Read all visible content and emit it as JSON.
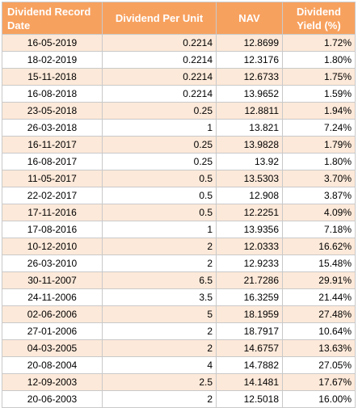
{
  "table": {
    "headers": {
      "date": "Dividend Record Date",
      "unit": "Dividend Per Unit",
      "nav": "NAV",
      "yield": "Dividend Yield (%)"
    },
    "rows": [
      {
        "date": "16-05-2019",
        "unit": "0.2214",
        "nav": "12.8699",
        "yield": "1.72%"
      },
      {
        "date": "18-02-2019",
        "unit": "0.2214",
        "nav": "12.3176",
        "yield": "1.80%"
      },
      {
        "date": "15-11-2018",
        "unit": "0.2214",
        "nav": "12.6733",
        "yield": "1.75%"
      },
      {
        "date": "16-08-2018",
        "unit": "0.2214",
        "nav": "13.9652",
        "yield": "1.59%"
      },
      {
        "date": "23-05-2018",
        "unit": "0.25",
        "nav": "12.8811",
        "yield": "1.94%"
      },
      {
        "date": "26-03-2018",
        "unit": "1",
        "nav": "13.821",
        "yield": "7.24%"
      },
      {
        "date": "16-11-2017",
        "unit": "0.25",
        "nav": "13.9828",
        "yield": "1.79%"
      },
      {
        "date": "16-08-2017",
        "unit": "0.25",
        "nav": "13.92",
        "yield": "1.80%"
      },
      {
        "date": "11-05-2017",
        "unit": "0.5",
        "nav": "13.5303",
        "yield": "3.70%"
      },
      {
        "date": "22-02-2017",
        "unit": "0.5",
        "nav": "12.908",
        "yield": "3.87%"
      },
      {
        "date": "17-11-2016",
        "unit": "0.5",
        "nav": "12.2251",
        "yield": "4.09%"
      },
      {
        "date": "17-08-2016",
        "unit": "1",
        "nav": "13.9356",
        "yield": "7.18%"
      },
      {
        "date": "10-12-2010",
        "unit": "2",
        "nav": "12.0333",
        "yield": "16.62%"
      },
      {
        "date": "26-03-2010",
        "unit": "2",
        "nav": "12.9233",
        "yield": "15.48%"
      },
      {
        "date": "30-11-2007",
        "unit": "6.5",
        "nav": "21.7286",
        "yield": "29.91%"
      },
      {
        "date": "24-11-2006",
        "unit": "3.5",
        "nav": "16.3259",
        "yield": "21.44%"
      },
      {
        "date": "02-06-2006",
        "unit": "5",
        "nav": "18.1959",
        "yield": "27.48%"
      },
      {
        "date": "27-01-2006",
        "unit": "2",
        "nav": "18.7917",
        "yield": "10.64%"
      },
      {
        "date": "04-03-2005",
        "unit": "2",
        "nav": "14.6757",
        "yield": "13.63%"
      },
      {
        "date": "20-08-2004",
        "unit": "4",
        "nav": "14.7882",
        "yield": "27.05%"
      },
      {
        "date": "12-09-2003",
        "unit": "2.5",
        "nav": "14.1481",
        "yield": "17.67%"
      },
      {
        "date": "20-06-2003",
        "unit": "2",
        "nav": "12.5018",
        "yield": "16.00%"
      }
    ]
  },
  "colors": {
    "header_bg": "#f7a15f",
    "header_text": "#ffffff",
    "stripe_bg": "#fde9d9",
    "border": "#c9c9c9"
  }
}
